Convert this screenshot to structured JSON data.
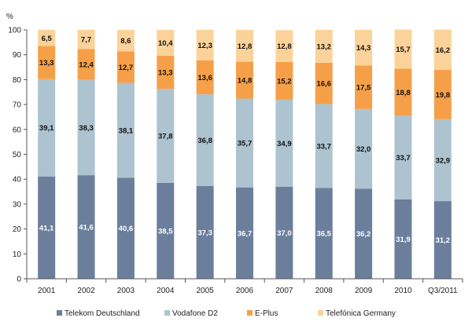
{
  "chart_data": {
    "type": "bar",
    "stacked": true,
    "title": "",
    "ylabel": "%",
    "xlabel": "",
    "ylim": [
      0,
      100
    ],
    "yticks": [
      0,
      10,
      20,
      30,
      40,
      50,
      60,
      70,
      80,
      90,
      100
    ],
    "grid": false,
    "legend_position": "bottom",
    "categories": [
      "2001",
      "2002",
      "2003",
      "2004",
      "2005",
      "2006",
      "2007",
      "2008",
      "2009",
      "2010",
      "Q3/2011"
    ],
    "series": [
      {
        "name": "Telekom Deutschland",
        "color": "#6b7f9c",
        "values": [
          41.1,
          41.6,
          40.6,
          38.5,
          37.3,
          36.7,
          37.0,
          36.5,
          36.2,
          31.9,
          31.2
        ],
        "labels": [
          "41,1",
          "41,6",
          "40,6",
          "38,5",
          "37,3",
          "36,7",
          "37,0",
          "36,5",
          "36,2",
          "31,9",
          "31,2"
        ]
      },
      {
        "name": "Vodafone D2",
        "color": "#adc3cf",
        "values": [
          39.1,
          38.3,
          38.1,
          37.8,
          36.8,
          35.7,
          34.9,
          33.7,
          32.0,
          33.7,
          32.9
        ],
        "labels": [
          "39,1",
          "38,3",
          "38,1",
          "37,8",
          "36,8",
          "35,7",
          "34,9",
          "33,7",
          "32,0",
          "33,7",
          "32,9"
        ]
      },
      {
        "name": "E-Plus",
        "color": "#f5a048",
        "values": [
          13.3,
          12.4,
          12.7,
          13.3,
          13.6,
          14.8,
          15.2,
          16.6,
          17.5,
          18.8,
          19.8
        ],
        "labels": [
          "13,3",
          "12,4",
          "12,7",
          "13,3",
          "13,6",
          "14,8",
          "15,2",
          "16,6",
          "17,5",
          "18,8",
          "19,8"
        ]
      },
      {
        "name": "Telefónica Germany",
        "color": "#fbd39a",
        "values": [
          6.5,
          7.7,
          8.6,
          10.4,
          12.3,
          12.8,
          12.8,
          13.2,
          14.3,
          15.7,
          16.2
        ],
        "labels": [
          "6,5",
          "7,7",
          "8,6",
          "10,4",
          "12,3",
          "12,8",
          "12,8",
          "13,2",
          "14,3",
          "15,7",
          "16,2"
        ]
      }
    ]
  }
}
